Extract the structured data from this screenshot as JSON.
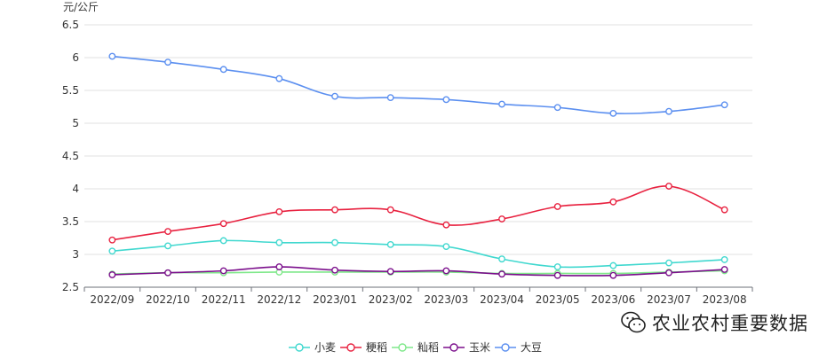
{
  "chart_data": {
    "type": "line",
    "unit": "元/公斤",
    "categories": [
      "2022/09",
      "2022/10",
      "2022/11",
      "2022/12",
      "2023/01",
      "2023/02",
      "2023/03",
      "2023/04",
      "2023/05",
      "2023/06",
      "2023/07",
      "2023/08"
    ],
    "ylim": [
      2.5,
      6.5
    ],
    "yticks": [
      2.5,
      3,
      3.5,
      4,
      4.5,
      5,
      5.5,
      6,
      6.5
    ],
    "ytick_labels": [
      "2.5",
      "3",
      "3.5",
      "4",
      "4.5",
      "5",
      "5.5",
      "6",
      "6.5"
    ],
    "grid": true,
    "legend_position": "bottom-center",
    "series": [
      {
        "name": "小麦",
        "color": "#40d8cf",
        "values": [
          3.05,
          3.13,
          3.21,
          3.18,
          3.18,
          3.15,
          3.12,
          2.93,
          2.81,
          2.83,
          2.87,
          2.92
        ]
      },
      {
        "name": "粳稻",
        "color": "#e8213f",
        "values": [
          3.22,
          3.35,
          3.47,
          3.65,
          3.68,
          3.68,
          3.45,
          3.54,
          3.73,
          3.8,
          4.04,
          3.68
        ]
      },
      {
        "name": "籼稻",
        "color": "#7fe88a",
        "values": [
          2.7,
          2.72,
          2.72,
          2.73,
          2.73,
          2.73,
          2.73,
          2.71,
          2.71,
          2.71,
          2.73,
          2.75
        ]
      },
      {
        "name": "玉米",
        "color": "#7b0f8c",
        "values": [
          2.69,
          2.72,
          2.75,
          2.81,
          2.76,
          2.74,
          2.75,
          2.7,
          2.68,
          2.68,
          2.72,
          2.77
        ]
      },
      {
        "name": "大豆",
        "color": "#5b8ff0",
        "values": [
          6.02,
          5.93,
          5.82,
          5.68,
          5.41,
          5.39,
          5.36,
          5.29,
          5.24,
          5.15,
          5.18,
          5.28
        ]
      }
    ]
  },
  "watermark": {
    "text": "农业农村重要数据",
    "icon": "wechat-icon"
  }
}
